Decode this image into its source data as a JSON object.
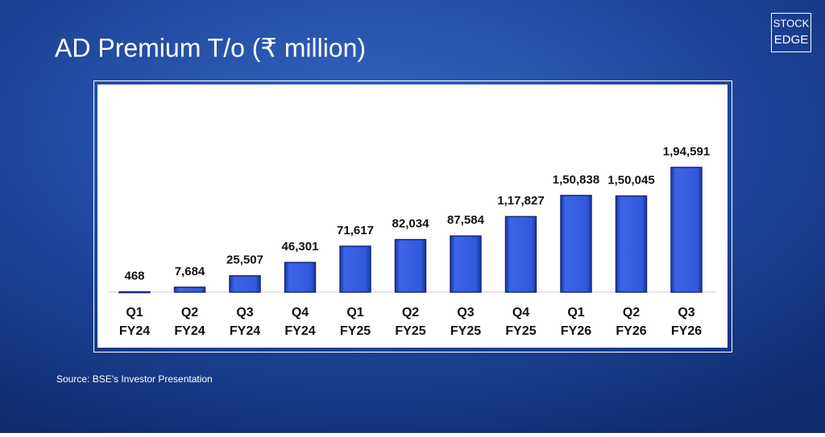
{
  "chart_data": {
    "type": "bar",
    "title": "AD Premium T/o (₹ million)",
    "categories": [
      [
        "Q1",
        "FY24"
      ],
      [
        "Q2",
        "FY24"
      ],
      [
        "Q3",
        "FY24"
      ],
      [
        "Q4",
        "FY24"
      ],
      [
        "Q1",
        "FY25"
      ],
      [
        "Q2",
        "FY25"
      ],
      [
        "Q3",
        "FY25"
      ],
      [
        "Q4",
        "FY25"
      ],
      [
        "Q1",
        "FY26"
      ],
      [
        "Q2",
        "FY26"
      ],
      [
        "Q3",
        "FY26"
      ]
    ],
    "values": [
      468,
      7684,
      25507,
      46301,
      71617,
      82034,
      87584,
      117827,
      150838,
      150045,
      194591
    ],
    "value_labels": [
      "468",
      "7,684",
      "25,507",
      "46,301",
      "71,617",
      "82,034",
      "87,584",
      "1,17,827",
      "1,50,838",
      "1,50,045",
      "1,94,591"
    ],
    "color": "#2c52d4",
    "source": "Source: BSE's Investor Presentation",
    "logo": [
      "STOCK",
      "EDGE"
    ]
  }
}
